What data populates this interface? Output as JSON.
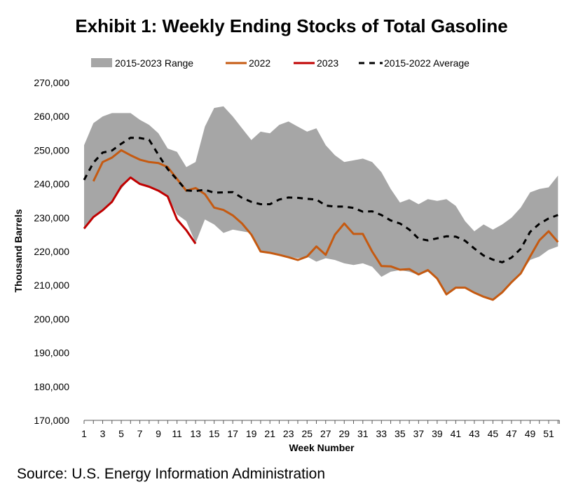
{
  "title": "Exhibit 1: Weekly Ending Stocks of Total Gasoline",
  "source": "Source: U.S. Energy Information Administration",
  "colors": {
    "range": "#a6a6a6",
    "y2022": "#c55a11",
    "y2023": "#c00000",
    "average": "#000000"
  },
  "chart_data": {
    "type": "line",
    "title": "Exhibit 1: Weekly Ending Stocks of Total Gasoline",
    "xlabel": "Week Number",
    "ylabel": "Thousand Barrels",
    "ylim": [
      170000,
      270000
    ],
    "yticks": [
      270000,
      260000,
      250000,
      240000,
      230000,
      220000,
      210000,
      200000,
      190000,
      180000,
      170000
    ],
    "ytick_labels": [
      "270,000",
      "260,000",
      "250,000",
      "240,000",
      "230,000",
      "220,000",
      "210,000",
      "200,000",
      "190,000",
      "180,000",
      "170,000"
    ],
    "xlim": [
      1,
      52
    ],
    "xtick_labels": [
      "1",
      "3",
      "5",
      "7",
      "9",
      "11",
      "13",
      "15",
      "17",
      "19",
      "21",
      "23",
      "25",
      "27",
      "29",
      "31",
      "33",
      "35",
      "37",
      "39",
      "41",
      "43",
      "45",
      "47",
      "49",
      "51"
    ],
    "legend": [
      "2015-2023 Range",
      "2022",
      "2023",
      "2015-2022 Average"
    ],
    "legend_position": "top",
    "grid": false,
    "x": [
      1,
      2,
      3,
      4,
      5,
      6,
      7,
      8,
      9,
      10,
      11,
      12,
      13,
      14,
      15,
      16,
      17,
      18,
      19,
      20,
      21,
      22,
      23,
      24,
      25,
      26,
      27,
      28,
      29,
      30,
      31,
      32,
      33,
      34,
      35,
      36,
      37,
      38,
      39,
      40,
      41,
      42,
      43,
      44,
      45,
      46,
      47,
      48,
      49,
      50,
      51,
      52
    ],
    "range": {
      "name": "2015-2023 Range",
      "upper": [
        251500,
        258000,
        260000,
        261000,
        261000,
        261000,
        259000,
        257500,
        255000,
        250500,
        249500,
        245000,
        246500,
        257000,
        262500,
        263000,
        260000,
        256500,
        253000,
        255500,
        255000,
        257500,
        258500,
        257000,
        255500,
        256500,
        251500,
        248500,
        246500,
        247000,
        247500,
        246500,
        243500,
        238500,
        234500,
        235500,
        234000,
        235500,
        235000,
        235500,
        233500,
        229000,
        226000,
        228000,
        226500,
        228000,
        230000,
        233000,
        237500,
        238500,
        239000,
        242500
      ],
      "lower": [
        226500,
        230000,
        232000,
        234500,
        238500,
        242000,
        240000,
        239000,
        238000,
        236500,
        231000,
        229000,
        222500,
        229500,
        228000,
        225500,
        226500,
        226000,
        225500,
        220000,
        219500,
        219000,
        218500,
        218000,
        218500,
        217000,
        218000,
        217500,
        216500,
        216000,
        216500,
        215500,
        212500,
        214000,
        214500,
        214000,
        213000,
        214000,
        212000,
        207000,
        209000,
        209000,
        207500,
        206500,
        205500,
        207500,
        210500,
        213500,
        217500,
        218500,
        220500,
        221500
      ]
    },
    "series": [
      {
        "name": "2022",
        "values": [
          null,
          240800,
          246500,
          247800,
          250000,
          248500,
          247200,
          246500,
          246200,
          245000,
          241500,
          238000,
          238800,
          237000,
          233000,
          232300,
          230700,
          228300,
          225000,
          220000,
          219600,
          219000,
          218300,
          217500,
          218500,
          221500,
          219000,
          225000,
          228300,
          225200,
          225200,
          220000,
          215700,
          215600,
          214600,
          214800,
          213200,
          214500,
          212000,
          207300,
          209300,
          209300,
          207800,
          206600,
          205700,
          207900,
          210900,
          213500,
          218500,
          223300,
          226000,
          222800
        ]
      },
      {
        "name": "2023",
        "values": [
          226800,
          230200,
          232200,
          234700,
          239300,
          241900,
          240000,
          239200,
          238000,
          236300,
          229500,
          226300,
          222300,
          null,
          null,
          null,
          null,
          null,
          null,
          null,
          null,
          null,
          null,
          null,
          null,
          null,
          null,
          null,
          null,
          null,
          null,
          null,
          null,
          null,
          null,
          null,
          null,
          null,
          null,
          null,
          null,
          null,
          null,
          null,
          null,
          null,
          null,
          null,
          null,
          null,
          null,
          null
        ]
      },
      {
        "name": "2015-2022 Average",
        "values": [
          241200,
          246300,
          249300,
          249900,
          251900,
          253700,
          253600,
          253100,
          248600,
          244400,
          241300,
          238100,
          237900,
          238300,
          237400,
          237500,
          237600,
          235900,
          234700,
          234000,
          234000,
          235400,
          236000,
          235900,
          235600,
          235400,
          233600,
          233300,
          233300,
          232900,
          231800,
          231900,
          230800,
          229200,
          228300,
          226500,
          223800,
          223300,
          223900,
          224500,
          224400,
          223200,
          220900,
          218800,
          217600,
          216800,
          218200,
          220800,
          225800,
          228200,
          229800,
          230800
        ]
      }
    ]
  }
}
